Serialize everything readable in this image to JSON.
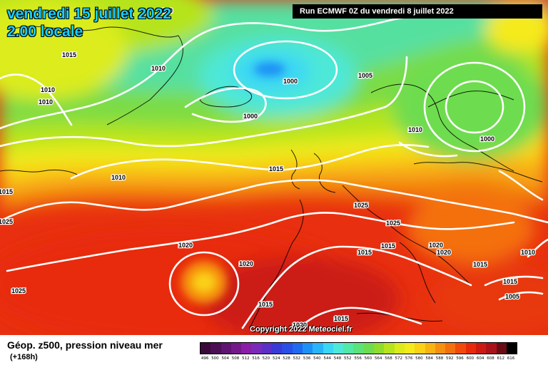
{
  "header": {
    "date": "vendredi 15 juillet 2022",
    "local_time": "2.00 locale",
    "run": "Run ECMWF 0Z du vendredi 8 juillet 2022"
  },
  "copyright": "Copyright 2022 Meteociel.fr",
  "legend": {
    "title": "Géop. z500, pression niveau mer",
    "subtitle": "(+168h)",
    "scale": [
      {
        "value": "496",
        "color": "#3a0a3a"
      },
      {
        "value": "500",
        "color": "#4b0f55"
      },
      {
        "value": "504",
        "color": "#5e1470"
      },
      {
        "value": "508",
        "color": "#74198a"
      },
      {
        "value": "512",
        "color": "#8a1ea6"
      },
      {
        "value": "516",
        "color": "#7a2ab8"
      },
      {
        "value": "520",
        "color": "#5a30c8"
      },
      {
        "value": "524",
        "color": "#3a3ad6"
      },
      {
        "value": "528",
        "color": "#2a4ee6"
      },
      {
        "value": "532",
        "color": "#1f6af0"
      },
      {
        "value": "536",
        "color": "#1e90f5"
      },
      {
        "value": "540",
        "color": "#28b4f8"
      },
      {
        "value": "544",
        "color": "#3ad6f5"
      },
      {
        "value": "548",
        "color": "#4ee8d8"
      },
      {
        "value": "552",
        "color": "#52e8a8"
      },
      {
        "value": "556",
        "color": "#5ce27a"
      },
      {
        "value": "560",
        "color": "#6edc50"
      },
      {
        "value": "564",
        "color": "#8fdc2c"
      },
      {
        "value": "568",
        "color": "#b6e41e"
      },
      {
        "value": "572",
        "color": "#dcec1a"
      },
      {
        "value": "576",
        "color": "#f5ea1a"
      },
      {
        "value": "580",
        "color": "#fad216"
      },
      {
        "value": "584",
        "color": "#f8b412"
      },
      {
        "value": "588",
        "color": "#f69010"
      },
      {
        "value": "592",
        "color": "#f4700e"
      },
      {
        "value": "596",
        "color": "#f04a0c"
      },
      {
        "value": "600",
        "color": "#e82a0c"
      },
      {
        "value": "604",
        "color": "#cc1a12"
      },
      {
        "value": "608",
        "color": "#aa121a"
      },
      {
        "value": "612",
        "color": "#6a0c14"
      },
      {
        "value": "616",
        "color": "#000000"
      }
    ]
  },
  "isobar_labels": [
    "1010",
    "1015",
    "1010",
    "1010",
    "1010",
    "1000",
    "1005",
    "1000",
    "1010",
    "1000",
    "1015",
    "1010",
    "1025",
    "1025",
    "1020",
    "1015",
    "1020",
    "1015",
    "1020",
    "1015",
    "1025",
    "1020",
    "1015",
    "1015",
    "1015",
    "1005",
    "1010",
    "1020",
    "1015",
    "1025"
  ]
}
